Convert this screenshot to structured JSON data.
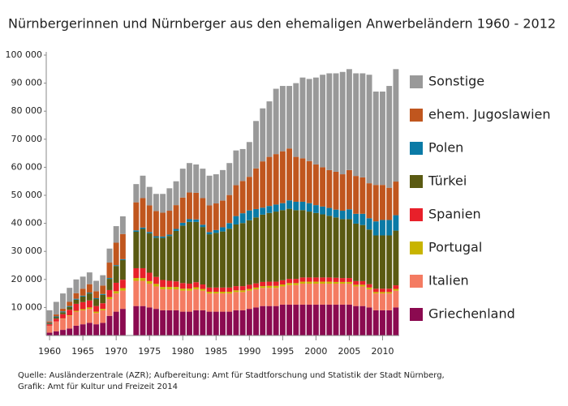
{
  "chart_data": {
    "type": "stacked-bar",
    "title": "Nürnbergerinnen und Nürnberger aus den ehemaligen Anwerbeländern 1960 - 2012",
    "source": [
      "Quelle: Ausländerzentrale (AZR); Aufbereitung: Amt für Stadtforschung und Statistik der Stadt Nürnberg,",
      "Grafik: Amt für Kultur und Freizeit 2014"
    ],
    "x": [
      1960,
      1961,
      1962,
      1963,
      1964,
      1965,
      1966,
      1967,
      1968,
      1969,
      1970,
      1971,
      1972,
      1973,
      1974,
      1975,
      1976,
      1977,
      1978,
      1979,
      1980,
      1981,
      1982,
      1983,
      1984,
      1985,
      1986,
      1987,
      1988,
      1989,
      1990,
      1991,
      1992,
      1993,
      1994,
      1995,
      1996,
      1997,
      1998,
      1999,
      2000,
      2001,
      2002,
      2003,
      2004,
      2005,
      2006,
      2007,
      2008,
      2009,
      2010,
      2011,
      2012
    ],
    "xlim": [
      1959.5,
      2012.5
    ],
    "xticks": [
      1960,
      1965,
      1970,
      1975,
      1980,
      1985,
      1990,
      1995,
      2000,
      2005,
      2010
    ],
    "ylim": [
      0,
      100000
    ],
    "yticks": [
      {
        "value": 10000,
        "label": "10 000"
      },
      {
        "value": 20000,
        "label": "20 000"
      },
      {
        "value": 30000,
        "label": "30 000"
      },
      {
        "value": 40000,
        "label": "40 000"
      },
      {
        "value": 50000,
        "label": "50 000"
      },
      {
        "value": 60000,
        "label": "60 000"
      },
      {
        "value": 70000,
        "label": "70 000"
      },
      {
        "value": 80000,
        "label": "80 000"
      },
      {
        "value": 90000,
        "label": "90 000"
      },
      {
        "value": 100000,
        "label": "100 000"
      }
    ],
    "grid": false,
    "legend": "right",
    "series": [
      {
        "name": "Griechenland",
        "color": "#8b0a50",
        "values": [
          1000,
          1500,
          2000,
          2500,
          3500,
          4000,
          4500,
          4000,
          4500,
          7000,
          8500,
          9500,
          null,
          10500,
          10500,
          10000,
          9500,
          9000,
          9000,
          9000,
          8500,
          8500,
          9000,
          9000,
          8500,
          8500,
          8500,
          8500,
          9000,
          9000,
          9500,
          10000,
          10500,
          10500,
          10500,
          11000,
          11000,
          11000,
          11000,
          11000,
          11000,
          11000,
          11000,
          11000,
          11000,
          11000,
          10500,
          10500,
          10000,
          9000,
          9000,
          9000,
          10000
        ]
      },
      {
        "name": "Italien",
        "color": "#f47b62",
        "values": [
          2500,
          3500,
          4000,
          4500,
          5000,
          5000,
          5000,
          4000,
          4500,
          6000,
          6500,
          6500,
          null,
          9000,
          9000,
          8500,
          8000,
          7500,
          7500,
          7500,
          7500,
          7500,
          7500,
          7000,
          6500,
          6500,
          6500,
          6500,
          6500,
          6500,
          6500,
          6500,
          6500,
          6500,
          6500,
          6500,
          7000,
          7000,
          7500,
          7500,
          7500,
          7500,
          7500,
          7500,
          7500,
          7500,
          7000,
          7000,
          6500,
          6000,
          6000,
          6000,
          6000
        ]
      },
      {
        "name": "Portugal",
        "color": "#c8b400",
        "values": [
          0,
          0,
          100,
          200,
          300,
          400,
          500,
          500,
          500,
          700,
          800,
          900,
          null,
          1000,
          1000,
          900,
          900,
          800,
          800,
          800,
          700,
          700,
          700,
          600,
          600,
          600,
          600,
          600,
          600,
          600,
          600,
          600,
          600,
          700,
          700,
          700,
          700,
          700,
          700,
          700,
          700,
          700,
          700,
          600,
          600,
          600,
          600,
          600,
          600,
          500,
          500,
          500,
          600
        ]
      },
      {
        "name": "Spanien",
        "color": "#e8202a",
        "values": [
          500,
          1000,
          1500,
          2000,
          2500,
          2500,
          2500,
          2000,
          2000,
          2500,
          3000,
          3000,
          null,
          3500,
          3500,
          3000,
          2500,
          2500,
          2200,
          2000,
          2000,
          1800,
          1800,
          1600,
          1500,
          1500,
          1500,
          1500,
          1500,
          1500,
          1500,
          1500,
          1500,
          1500,
          1500,
          1500,
          1500,
          1500,
          1500,
          1500,
          1500,
          1500,
          1500,
          1500,
          1400,
          1400,
          1300,
          1300,
          1200,
          1200,
          1200,
          1200,
          1300
        ]
      },
      {
        "name": "Türkei",
        "color": "#5a5a12",
        "values": [
          300,
          500,
          700,
          1000,
          1500,
          2000,
          2500,
          2500,
          3000,
          4000,
          6000,
          7000,
          null,
          13000,
          14000,
          14000,
          14000,
          15000,
          16000,
          18000,
          20500,
          22000,
          21500,
          20500,
          19000,
          19500,
          20000,
          21000,
          22000,
          22500,
          23000,
          23500,
          24000,
          24500,
          25000,
          25000,
          25000,
          24500,
          24000,
          23500,
          23000,
          22500,
          22000,
          21500,
          21000,
          21000,
          20500,
          20000,
          19500,
          19000,
          19000,
          19000,
          19500
        ]
      },
      {
        "name": "Polen",
        "color": "#0a7aa6",
        "values": [
          200,
          300,
          300,
          300,
          300,
          300,
          300,
          300,
          300,
          300,
          300,
          300,
          null,
          500,
          500,
          500,
          500,
          500,
          500,
          700,
          1000,
          1000,
          900,
          800,
          800,
          1000,
          1500,
          2000,
          3000,
          3500,
          3500,
          3000,
          2500,
          2500,
          2500,
          2500,
          3000,
          3000,
          3000,
          3000,
          2800,
          2800,
          2800,
          2800,
          3000,
          3500,
          3500,
          4000,
          4000,
          5000,
          5500,
          5500,
          5500
        ]
      },
      {
        "name": "ehem. Jugoslawien",
        "color": "#c0561e",
        "values": [
          500,
          700,
          1000,
          1500,
          2000,
          2500,
          3000,
          2500,
          3000,
          5500,
          8000,
          9000,
          null,
          10000,
          10500,
          9500,
          9000,
          8500,
          8500,
          8500,
          9000,
          9500,
          9500,
          9500,
          9500,
          9500,
          9500,
          10000,
          11000,
          11500,
          12000,
          14500,
          16500,
          17500,
          18000,
          18500,
          18500,
          16000,
          15500,
          15000,
          14500,
          14000,
          13500,
          13500,
          13000,
          14000,
          13500,
          13000,
          12500,
          13000,
          12500,
          11500,
          12000
        ]
      },
      {
        "name": "Sonstige",
        "color": "#999999",
        "values": [
          4000,
          4500,
          5400,
          5000,
          4900,
          4300,
          4200,
          3700,
          3700,
          5000,
          5900,
          6300,
          null,
          6500,
          8000,
          6600,
          6100,
          6700,
          8000,
          8500,
          10300,
          10500,
          10100,
          10500,
          10600,
          10400,
          10900,
          11400,
          12400,
          11400,
          12400,
          16900,
          18900,
          19800,
          23300,
          23300,
          22300,
          26300,
          28800,
          29300,
          31000,
          33000,
          34500,
          35100,
          36500,
          36000,
          36600,
          37100,
          38700,
          33300,
          33300,
          36300,
          40100
        ]
      }
    ]
  }
}
